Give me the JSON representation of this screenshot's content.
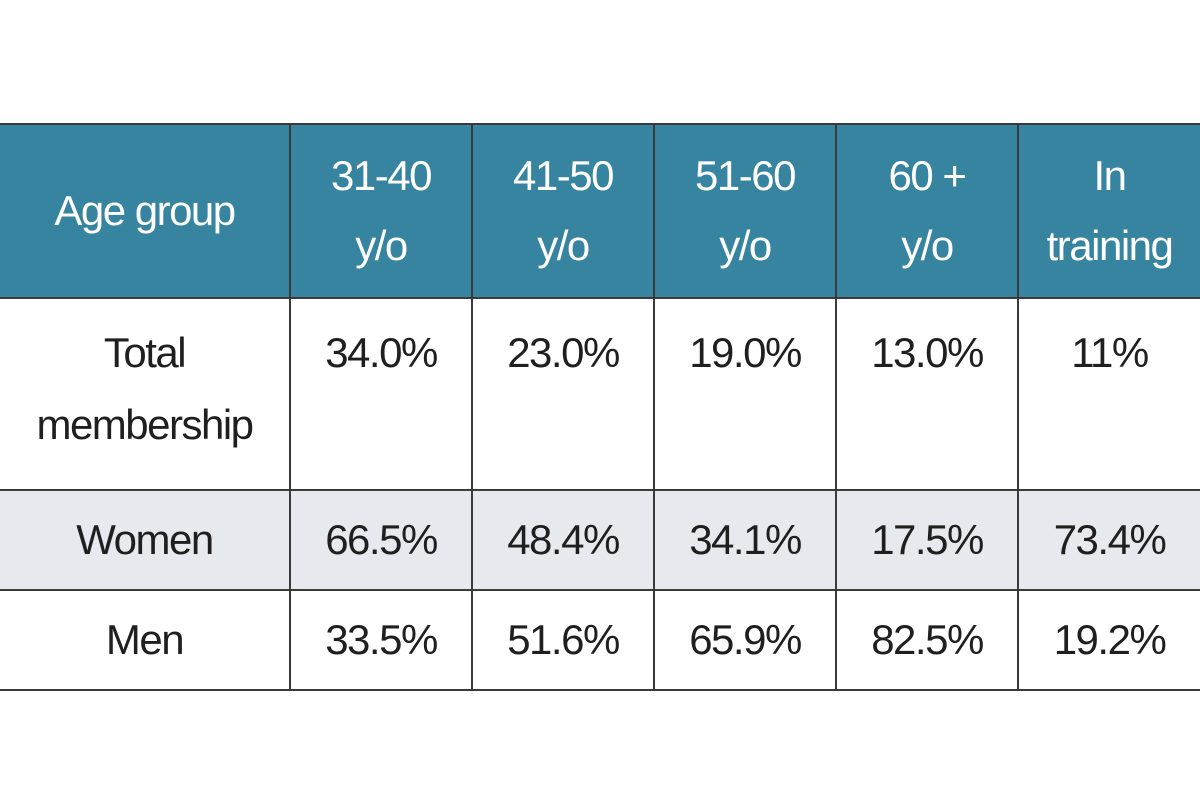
{
  "chart_data": {
    "type": "table",
    "columns": [
      "Age group",
      "31-40\ny/o",
      "41-50\ny/o",
      "51-60\ny/o",
      "60 +\ny/o",
      "In\ntraining"
    ],
    "rows": [
      {
        "label": "Total\nmembership",
        "values": [
          "34.0%",
          "23.0%",
          "19.0%",
          "13.0%",
          "11%"
        ]
      },
      {
        "label": "Women",
        "values": [
          "66.5%",
          "48.4%",
          "34.1%",
          "17.5%",
          "73.4%"
        ]
      },
      {
        "label": "Men",
        "values": [
          "33.5%",
          "51.6%",
          "65.9%",
          "82.5%",
          "19.2%"
        ]
      }
    ],
    "colors": {
      "header_background": "#3684a0",
      "header_text": "#ffffff",
      "alt_row_background": "#e6eaee",
      "border": "#3a3a3a"
    }
  }
}
